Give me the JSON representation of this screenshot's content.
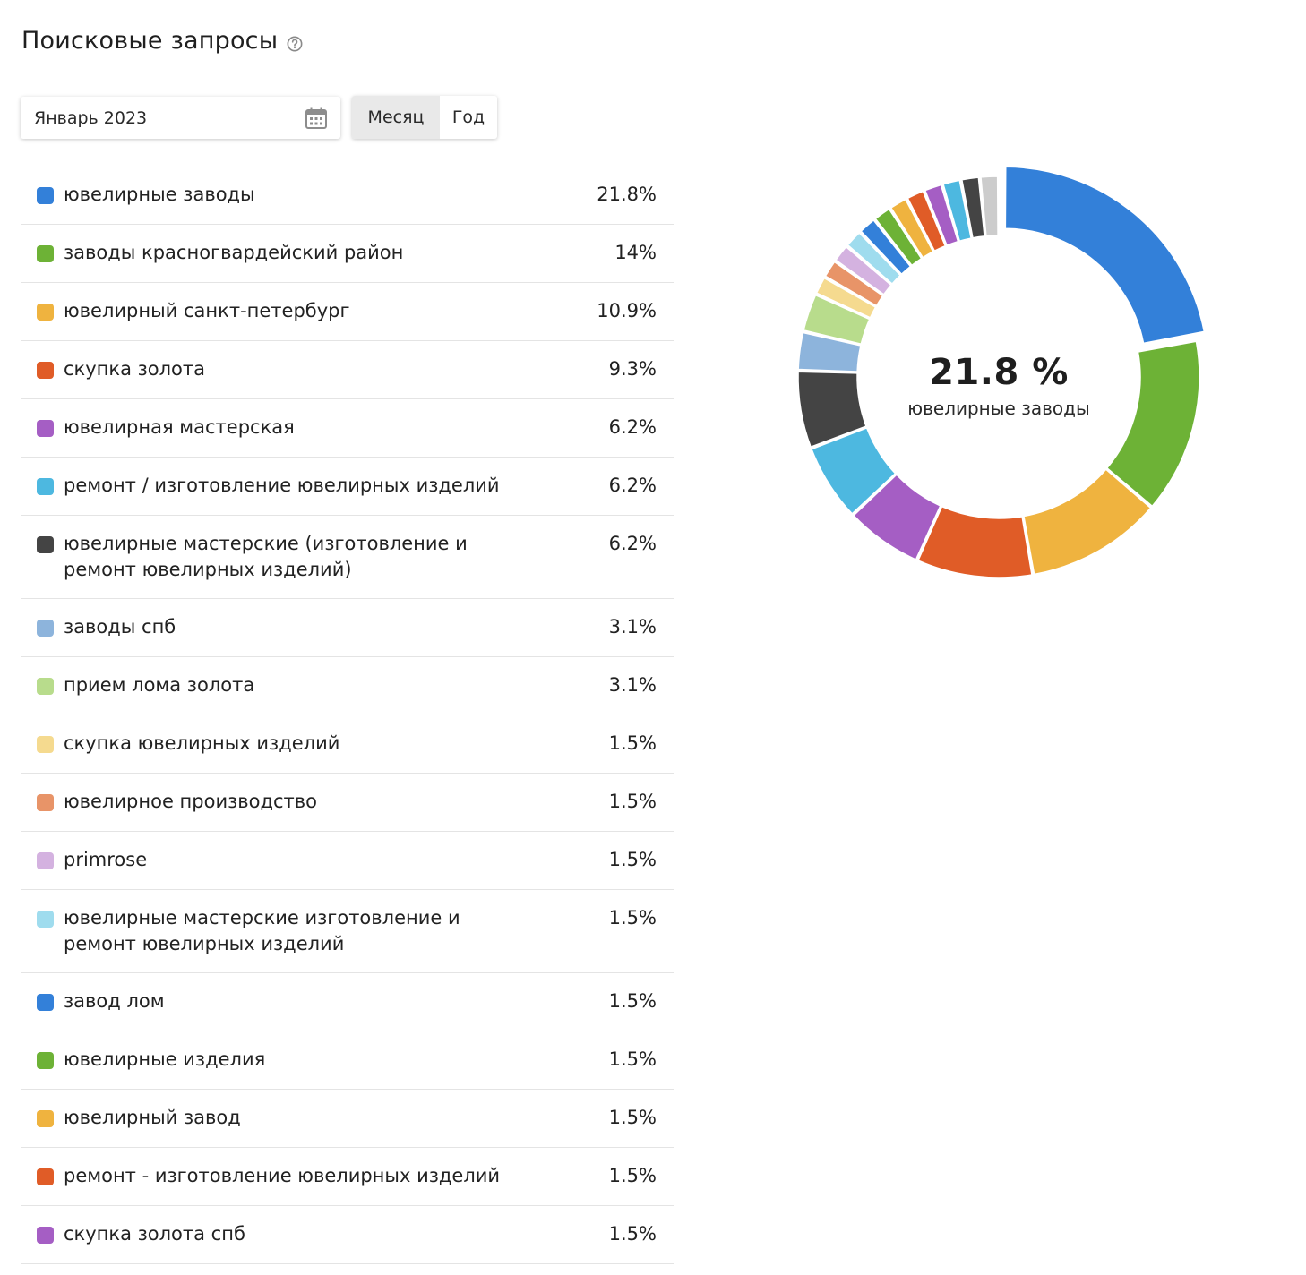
{
  "header": {
    "title": "Поисковые запросы",
    "help_icon": "question-circle-icon"
  },
  "filters": {
    "date_value": "Январь 2023",
    "calendar_icon": "calendar-icon",
    "period_options": [
      "Месяц",
      "Год"
    ],
    "period_selected": "Месяц"
  },
  "chart_data": {
    "type": "pie",
    "title": "",
    "center_value": "21.8 %",
    "center_label": "ювелирные заводы",
    "highlighted_index": 0,
    "slices": [
      {
        "label": "ювелирные заводы",
        "value": 21.8,
        "display": "21.8%",
        "color": "#3380d9"
      },
      {
        "label": "заводы красногвардейский район",
        "value": 14,
        "display": "14%",
        "color": "#6db236"
      },
      {
        "label": "ювелирный санкт-петербург",
        "value": 10.9,
        "display": "10.9%",
        "color": "#efb33f"
      },
      {
        "label": "скупка золота",
        "value": 9.3,
        "display": "9.3%",
        "color": "#e05c27"
      },
      {
        "label": "ювелирная мастерская",
        "value": 6.2,
        "display": "6.2%",
        "color": "#a55ec4"
      },
      {
        "label": "ремонт / изготовление ювелирных изделий",
        "value": 6.2,
        "display": "6.2%",
        "color": "#4db8e0"
      },
      {
        "label": "ювелирные мастерские (изготовление и ремонт ювелирных изделий)",
        "value": 6.2,
        "display": "6.2%",
        "color": "#444444"
      },
      {
        "label": "заводы спб",
        "value": 3.1,
        "display": "3.1%",
        "color": "#8db4dc"
      },
      {
        "label": "прием лома золота",
        "value": 3.1,
        "display": "3.1%",
        "color": "#b8dc8c"
      },
      {
        "label": "скупка ювелирных изделий",
        "value": 1.5,
        "display": "1.5%",
        "color": "#f5da8f"
      },
      {
        "label": "ювелирное производство",
        "value": 1.5,
        "display": "1.5%",
        "color": "#e89468"
      },
      {
        "label": "primrose",
        "value": 1.5,
        "display": "1.5%",
        "color": "#d4b2e0"
      },
      {
        "label": "ювелирные мастерские изготовление и ремонт ювелирных изделий",
        "value": 1.5,
        "display": "1.5%",
        "color": "#9fdcee"
      },
      {
        "label": "завод лом",
        "value": 1.5,
        "display": "1.5%",
        "color": "#3380d9"
      },
      {
        "label": "ювелирные изделия",
        "value": 1.5,
        "display": "1.5%",
        "color": "#6db236"
      },
      {
        "label": "ювелирный завод",
        "value": 1.5,
        "display": "1.5%",
        "color": "#efb33f"
      },
      {
        "label": "ремонт - изготовление ювелирных изделий",
        "value": 1.5,
        "display": "1.5%",
        "color": "#e05c27"
      },
      {
        "label": "скупка золота спб",
        "value": 1.5,
        "display": "1.5%",
        "color": "#a55ec4"
      },
      {
        "label": "",
        "value": 1.5,
        "display": "",
        "color": "#4db8e0"
      },
      {
        "label": "",
        "value": 1.5,
        "display": "",
        "color": "#444444"
      },
      {
        "label": "",
        "value": 1.5,
        "display": "",
        "color": "#cccccc"
      }
    ],
    "visible_legend_count": 18
  }
}
